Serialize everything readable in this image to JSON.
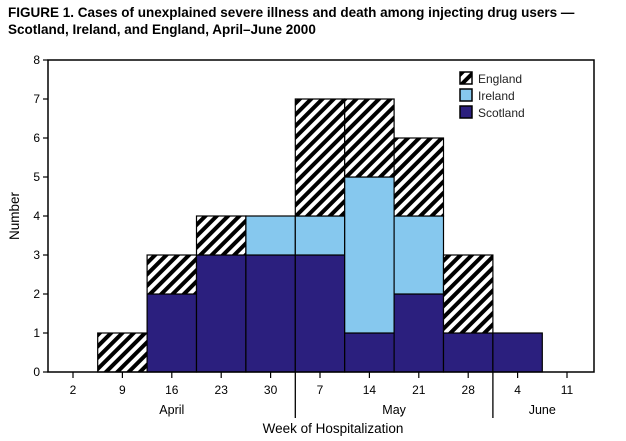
{
  "chart_data": {
    "type": "bar",
    "stacked": true,
    "title": "FIGURE 1. Cases of unexplained severe illness and death among injecting drug users — Scotland, Ireland, and England, April–June 2000",
    "xlabel": "Week of Hospitalization",
    "ylabel": "Number",
    "ylim": [
      0,
      8
    ],
    "yticks": [
      0,
      1,
      2,
      3,
      4,
      5,
      6,
      7,
      8
    ],
    "categories": [
      "2",
      "9",
      "16",
      "23",
      "30",
      "7",
      "14",
      "21",
      "28",
      "4",
      "11"
    ],
    "months": [
      {
        "label": "April",
        "from": 0,
        "to": 4
      },
      {
        "label": "May",
        "from": 5,
        "to": 8
      },
      {
        "label": "June",
        "from": 9,
        "to": 10
      }
    ],
    "legend_position": "top-right",
    "series": [
      {
        "name": "Scotland",
        "color": "#2b1f7e",
        "values": [
          0,
          0,
          2,
          3,
          3,
          3,
          1,
          2,
          1,
          1,
          0
        ]
      },
      {
        "name": "Ireland",
        "color": "#86c8ee",
        "values": [
          0,
          0,
          0,
          0,
          1,
          1,
          4,
          2,
          0,
          0,
          0
        ]
      },
      {
        "name": "England",
        "color": "hatch",
        "values": [
          0,
          1,
          1,
          1,
          0,
          3,
          2,
          2,
          2,
          0,
          0
        ]
      }
    ]
  }
}
